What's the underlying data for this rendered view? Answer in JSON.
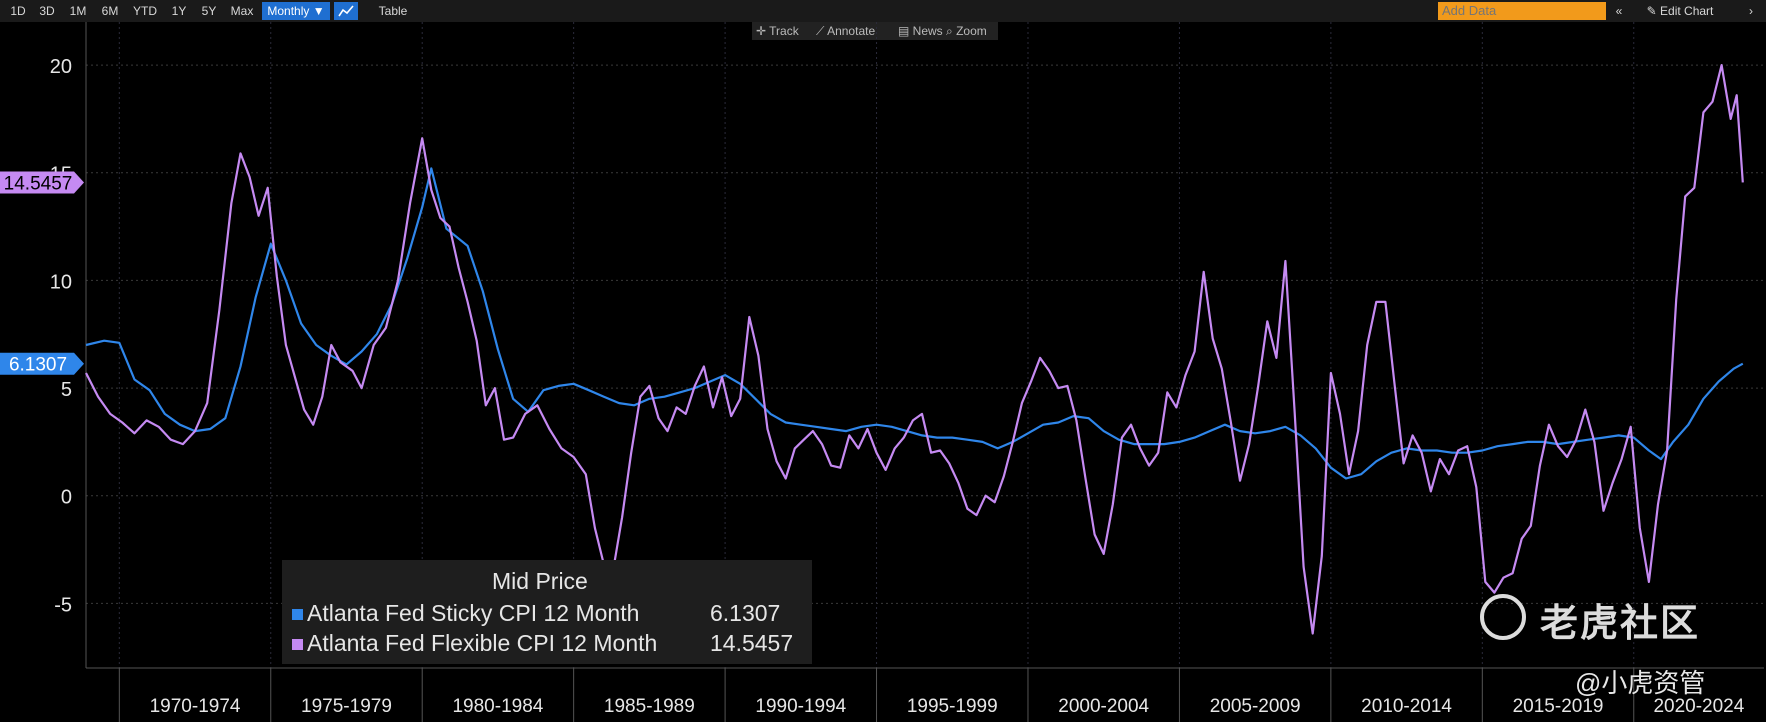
{
  "toolbar": {
    "ranges": [
      "1D",
      "3D",
      "1M",
      "6M",
      "YTD",
      "1Y",
      "5Y",
      "Max"
    ],
    "frequency": "Monthly ▼",
    "table_label": "Table",
    "add_data_placeholder": "Add Data",
    "collapse_glyph": "«",
    "edit_chart_label": "Edit Chart",
    "edit_icon": "pencil-icon",
    "scroll_glyph": "›"
  },
  "subbar": {
    "track": "Track",
    "annotate": "Annotate",
    "news": "News",
    "zoom": "Zoom"
  },
  "legend": {
    "title": "Mid Price",
    "items": [
      {
        "label": "Atlanta Fed Sticky CPI 12 Month",
        "value": "6.1307",
        "color": "#2f86ea"
      },
      {
        "label": "Atlanta Fed Flexible CPI 12 Month",
        "value": "14.5457",
        "color": "#c58af2"
      }
    ]
  },
  "watermark": {
    "brand": "老虎社区",
    "handle": "@小虎资管"
  },
  "chart_data": {
    "type": "line",
    "ylim": [
      -8,
      22
    ],
    "yticks": [
      -5,
      0,
      5,
      10,
      15,
      20
    ],
    "x_range": [
      1968.9,
      2024.3
    ],
    "x_period_labels": [
      "1970-1974",
      "1975-1979",
      "1980-1984",
      "1985-1989",
      "1990-1994",
      "1995-1999",
      "2000-2004",
      "2005-2009",
      "2010-2014",
      "2015-2019",
      "2020-2024"
    ],
    "last_value_tags": [
      {
        "series": "Atlanta Fed Flexible CPI 12 Month",
        "value": "14.5457",
        "color": "#c58af2"
      },
      {
        "series": "Atlanta Fed Sticky CPI 12 Month",
        "value": "6.1307",
        "color": "#2f86ea"
      }
    ],
    "series": [
      {
        "name": "Atlanta Fed Sticky CPI 12 Month",
        "color": "#2f86ea",
        "points": [
          [
            1968.9,
            7.0
          ],
          [
            1969.5,
            7.2
          ],
          [
            1970.0,
            7.1
          ],
          [
            1970.5,
            5.4
          ],
          [
            1971.0,
            4.9
          ],
          [
            1971.5,
            3.8
          ],
          [
            1972.0,
            3.3
          ],
          [
            1972.5,
            3.0
          ],
          [
            1973.0,
            3.1
          ],
          [
            1973.5,
            3.6
          ],
          [
            1974.0,
            6.0
          ],
          [
            1974.5,
            9.2
          ],
          [
            1975.0,
            11.7
          ],
          [
            1975.5,
            10.0
          ],
          [
            1976.0,
            8.0
          ],
          [
            1976.5,
            7.0
          ],
          [
            1977.0,
            6.5
          ],
          [
            1977.5,
            6.1
          ],
          [
            1978.0,
            6.7
          ],
          [
            1978.5,
            7.5
          ],
          [
            1979.0,
            8.9
          ],
          [
            1979.5,
            11.0
          ],
          [
            1980.0,
            13.4
          ],
          [
            1980.3,
            15.2
          ],
          [
            1980.8,
            12.4
          ],
          [
            1981.5,
            11.6
          ],
          [
            1982.0,
            9.5
          ],
          [
            1982.5,
            6.8
          ],
          [
            1983.0,
            4.5
          ],
          [
            1983.5,
            3.9
          ],
          [
            1984.0,
            4.9
          ],
          [
            1984.5,
            5.1
          ],
          [
            1985.0,
            5.2
          ],
          [
            1985.5,
            4.9
          ],
          [
            1986.0,
            4.6
          ],
          [
            1986.5,
            4.3
          ],
          [
            1987.0,
            4.2
          ],
          [
            1987.5,
            4.5
          ],
          [
            1988.0,
            4.6
          ],
          [
            1988.5,
            4.8
          ],
          [
            1989.0,
            5.0
          ],
          [
            1989.5,
            5.3
          ],
          [
            1990.0,
            5.6
          ],
          [
            1990.5,
            5.2
          ],
          [
            1991.0,
            4.5
          ],
          [
            1991.5,
            3.8
          ],
          [
            1992.0,
            3.4
          ],
          [
            1992.5,
            3.3
          ],
          [
            1993.0,
            3.2
          ],
          [
            1993.5,
            3.1
          ],
          [
            1994.0,
            3.0
          ],
          [
            1994.5,
            3.2
          ],
          [
            1995.0,
            3.3
          ],
          [
            1995.5,
            3.2
          ],
          [
            1996.0,
            3.0
          ],
          [
            1996.5,
            2.8
          ],
          [
            1997.0,
            2.7
          ],
          [
            1997.5,
            2.7
          ],
          [
            1998.0,
            2.6
          ],
          [
            1998.5,
            2.5
          ],
          [
            1999.0,
            2.2
          ],
          [
            1999.5,
            2.5
          ],
          [
            2000.0,
            2.9
          ],
          [
            2000.5,
            3.3
          ],
          [
            2001.0,
            3.4
          ],
          [
            2001.5,
            3.7
          ],
          [
            2002.0,
            3.6
          ],
          [
            2002.5,
            3.0
          ],
          [
            2003.0,
            2.6
          ],
          [
            2003.5,
            2.4
          ],
          [
            2004.0,
            2.4
          ],
          [
            2004.5,
            2.4
          ],
          [
            2005.0,
            2.5
          ],
          [
            2005.5,
            2.7
          ],
          [
            2006.0,
            3.0
          ],
          [
            2006.5,
            3.3
          ],
          [
            2007.0,
            3.0
          ],
          [
            2007.5,
            2.9
          ],
          [
            2008.0,
            3.0
          ],
          [
            2008.5,
            3.2
          ],
          [
            2009.0,
            2.8
          ],
          [
            2009.5,
            2.2
          ],
          [
            2010.0,
            1.3
          ],
          [
            2010.5,
            0.8
          ],
          [
            2011.0,
            1.0
          ],
          [
            2011.5,
            1.6
          ],
          [
            2012.0,
            2.0
          ],
          [
            2012.5,
            2.2
          ],
          [
            2013.0,
            2.1
          ],
          [
            2013.5,
            2.1
          ],
          [
            2014.0,
            2.0
          ],
          [
            2014.5,
            2.0
          ],
          [
            2015.0,
            2.1
          ],
          [
            2015.5,
            2.3
          ],
          [
            2016.0,
            2.4
          ],
          [
            2016.5,
            2.5
          ],
          [
            2017.0,
            2.5
          ],
          [
            2017.5,
            2.4
          ],
          [
            2018.0,
            2.5
          ],
          [
            2018.5,
            2.6
          ],
          [
            2019.0,
            2.7
          ],
          [
            2019.5,
            2.8
          ],
          [
            2020.0,
            2.7
          ],
          [
            2020.5,
            2.1
          ],
          [
            2020.9,
            1.7
          ],
          [
            2021.3,
            2.5
          ],
          [
            2021.8,
            3.3
          ],
          [
            2022.3,
            4.5
          ],
          [
            2022.8,
            5.3
          ],
          [
            2023.3,
            5.9
          ],
          [
            2023.6,
            6.13
          ]
        ]
      },
      {
        "name": "Atlanta Fed Flexible CPI 12 Month",
        "color": "#c58af2",
        "points": [
          [
            1968.9,
            5.7
          ],
          [
            1969.3,
            4.6
          ],
          [
            1969.7,
            3.8
          ],
          [
            1970.1,
            3.4
          ],
          [
            1970.5,
            2.9
          ],
          [
            1970.9,
            3.5
          ],
          [
            1971.3,
            3.2
          ],
          [
            1971.7,
            2.6
          ],
          [
            1972.1,
            2.4
          ],
          [
            1972.5,
            3.0
          ],
          [
            1972.9,
            4.3
          ],
          [
            1973.3,
            8.6
          ],
          [
            1973.7,
            13.6
          ],
          [
            1974.0,
            15.9
          ],
          [
            1974.3,
            14.8
          ],
          [
            1974.6,
            13.0
          ],
          [
            1974.9,
            14.3
          ],
          [
            1975.2,
            10.2
          ],
          [
            1975.5,
            7.0
          ],
          [
            1975.8,
            5.5
          ],
          [
            1976.1,
            4.0
          ],
          [
            1976.4,
            3.3
          ],
          [
            1976.7,
            4.6
          ],
          [
            1977.0,
            7.0
          ],
          [
            1977.3,
            6.2
          ],
          [
            1977.7,
            5.8
          ],
          [
            1978.0,
            5.0
          ],
          [
            1978.4,
            7.0
          ],
          [
            1978.8,
            7.8
          ],
          [
            1979.2,
            10.0
          ],
          [
            1979.6,
            13.6
          ],
          [
            1980.0,
            16.6
          ],
          [
            1980.3,
            14.2
          ],
          [
            1980.6,
            12.9
          ],
          [
            1980.9,
            12.5
          ],
          [
            1981.2,
            10.6
          ],
          [
            1981.5,
            9.0
          ],
          [
            1981.8,
            7.2
          ],
          [
            1982.1,
            4.2
          ],
          [
            1982.4,
            5.0
          ],
          [
            1982.7,
            2.6
          ],
          [
            1983.0,
            2.7
          ],
          [
            1983.4,
            3.8
          ],
          [
            1983.8,
            4.2
          ],
          [
            1984.2,
            3.1
          ],
          [
            1984.6,
            2.2
          ],
          [
            1985.0,
            1.8
          ],
          [
            1985.4,
            1.0
          ],
          [
            1985.7,
            -1.5
          ],
          [
            1986.0,
            -3.2
          ],
          [
            1986.3,
            -3.5
          ],
          [
            1986.6,
            -1.0
          ],
          [
            1986.9,
            2.0
          ],
          [
            1987.2,
            4.6
          ],
          [
            1987.5,
            5.1
          ],
          [
            1987.8,
            3.6
          ],
          [
            1988.1,
            3.0
          ],
          [
            1988.4,
            4.1
          ],
          [
            1988.7,
            3.8
          ],
          [
            1989.0,
            5.1
          ],
          [
            1989.3,
            6.0
          ],
          [
            1989.6,
            4.1
          ],
          [
            1989.9,
            5.5
          ],
          [
            1990.2,
            3.7
          ],
          [
            1990.5,
            4.5
          ],
          [
            1990.8,
            8.3
          ],
          [
            1991.1,
            6.5
          ],
          [
            1991.4,
            3.1
          ],
          [
            1991.7,
            1.6
          ],
          [
            1992.0,
            0.8
          ],
          [
            1992.3,
            2.2
          ],
          [
            1992.6,
            2.6
          ],
          [
            1992.9,
            3.0
          ],
          [
            1993.2,
            2.4
          ],
          [
            1993.5,
            1.4
          ],
          [
            1993.8,
            1.3
          ],
          [
            1994.1,
            2.8
          ],
          [
            1994.4,
            2.2
          ],
          [
            1994.7,
            3.1
          ],
          [
            1995.0,
            2.0
          ],
          [
            1995.3,
            1.2
          ],
          [
            1995.6,
            2.2
          ],
          [
            1995.9,
            2.7
          ],
          [
            1996.2,
            3.5
          ],
          [
            1996.5,
            3.8
          ],
          [
            1996.8,
            2.0
          ],
          [
            1997.1,
            2.1
          ],
          [
            1997.4,
            1.5
          ],
          [
            1997.7,
            0.6
          ],
          [
            1998.0,
            -0.6
          ],
          [
            1998.3,
            -0.9
          ],
          [
            1998.6,
            0.0
          ],
          [
            1998.9,
            -0.3
          ],
          [
            1999.2,
            0.9
          ],
          [
            1999.5,
            2.5
          ],
          [
            1999.8,
            4.3
          ],
          [
            2000.1,
            5.3
          ],
          [
            2000.4,
            6.4
          ],
          [
            2000.7,
            5.8
          ],
          [
            2001.0,
            5.0
          ],
          [
            2001.3,
            5.1
          ],
          [
            2001.6,
            3.5
          ],
          [
            2001.9,
            0.8
          ],
          [
            2002.2,
            -1.8
          ],
          [
            2002.5,
            -2.7
          ],
          [
            2002.8,
            -0.4
          ],
          [
            2003.1,
            2.7
          ],
          [
            2003.4,
            3.3
          ],
          [
            2003.7,
            2.2
          ],
          [
            2004.0,
            1.4
          ],
          [
            2004.3,
            2.0
          ],
          [
            2004.6,
            4.8
          ],
          [
            2004.9,
            4.1
          ],
          [
            2005.2,
            5.6
          ],
          [
            2005.5,
            6.7
          ],
          [
            2005.8,
            10.4
          ],
          [
            2006.1,
            7.3
          ],
          [
            2006.4,
            5.9
          ],
          [
            2006.7,
            3.4
          ],
          [
            2007.0,
            0.7
          ],
          [
            2007.3,
            2.4
          ],
          [
            2007.6,
            5.1
          ],
          [
            2007.9,
            8.1
          ],
          [
            2008.2,
            6.4
          ],
          [
            2008.5,
            10.9
          ],
          [
            2008.8,
            4.0
          ],
          [
            2009.1,
            -3.3
          ],
          [
            2009.4,
            -6.4
          ],
          [
            2009.7,
            -2.8
          ],
          [
            2010.0,
            5.7
          ],
          [
            2010.3,
            3.8
          ],
          [
            2010.6,
            1.0
          ],
          [
            2010.9,
            3.0
          ],
          [
            2011.2,
            7.0
          ],
          [
            2011.5,
            9.0
          ],
          [
            2011.8,
            9.0
          ],
          [
            2012.1,
            5.2
          ],
          [
            2012.4,
            1.5
          ],
          [
            2012.7,
            2.8
          ],
          [
            2013.0,
            2.0
          ],
          [
            2013.3,
            0.2
          ],
          [
            2013.6,
            1.7
          ],
          [
            2013.9,
            1.0
          ],
          [
            2014.2,
            2.1
          ],
          [
            2014.5,
            2.3
          ],
          [
            2014.8,
            0.4
          ],
          [
            2015.1,
            -4.0
          ],
          [
            2015.4,
            -4.5
          ],
          [
            2015.7,
            -3.8
          ],
          [
            2016.0,
            -3.6
          ],
          [
            2016.3,
            -2.0
          ],
          [
            2016.6,
            -1.4
          ],
          [
            2016.9,
            1.4
          ],
          [
            2017.2,
            3.3
          ],
          [
            2017.5,
            2.3
          ],
          [
            2017.8,
            1.8
          ],
          [
            2018.1,
            2.6
          ],
          [
            2018.4,
            4.0
          ],
          [
            2018.7,
            2.5
          ],
          [
            2019.0,
            -0.7
          ],
          [
            2019.3,
            0.6
          ],
          [
            2019.6,
            1.7
          ],
          [
            2019.9,
            3.2
          ],
          [
            2020.2,
            -1.5
          ],
          [
            2020.5,
            -4.0
          ],
          [
            2020.8,
            -0.4
          ],
          [
            2021.1,
            2.1
          ],
          [
            2021.4,
            9.1
          ],
          [
            2021.7,
            13.9
          ],
          [
            2022.0,
            14.3
          ],
          [
            2022.3,
            17.8
          ],
          [
            2022.6,
            18.3
          ],
          [
            2022.9,
            20.0
          ],
          [
            2023.2,
            17.5
          ],
          [
            2023.4,
            18.6
          ],
          [
            2023.6,
            14.55
          ]
        ]
      }
    ]
  }
}
